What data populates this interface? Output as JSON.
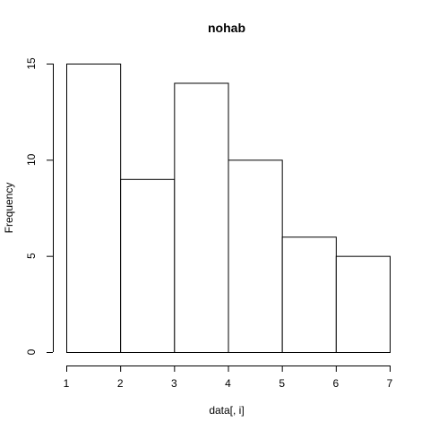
{
  "chart_data": {
    "type": "bar",
    "title": "nohab",
    "xlabel": "data[, i]",
    "ylabel": "Frequency",
    "bins": [
      {
        "start": 1,
        "end": 2,
        "value": 15
      },
      {
        "start": 2,
        "end": 3,
        "value": 9
      },
      {
        "start": 3,
        "end": 4,
        "value": 14
      },
      {
        "start": 4,
        "end": 5,
        "value": 10
      },
      {
        "start": 5,
        "end": 6,
        "value": 6
      },
      {
        "start": 6,
        "end": 7,
        "value": 5
      }
    ],
    "xlim": [
      1,
      7
    ],
    "ylim": [
      0,
      15
    ],
    "x_ticks": [
      "1",
      "2",
      "3",
      "4",
      "5",
      "6",
      "7"
    ],
    "y_ticks": [
      "0",
      "5",
      "10",
      "15"
    ],
    "grid": false,
    "legend": "none",
    "colors": {
      "bar_fill": "#ffffff",
      "bar_stroke": "#000000",
      "axis": "#000000"
    }
  }
}
